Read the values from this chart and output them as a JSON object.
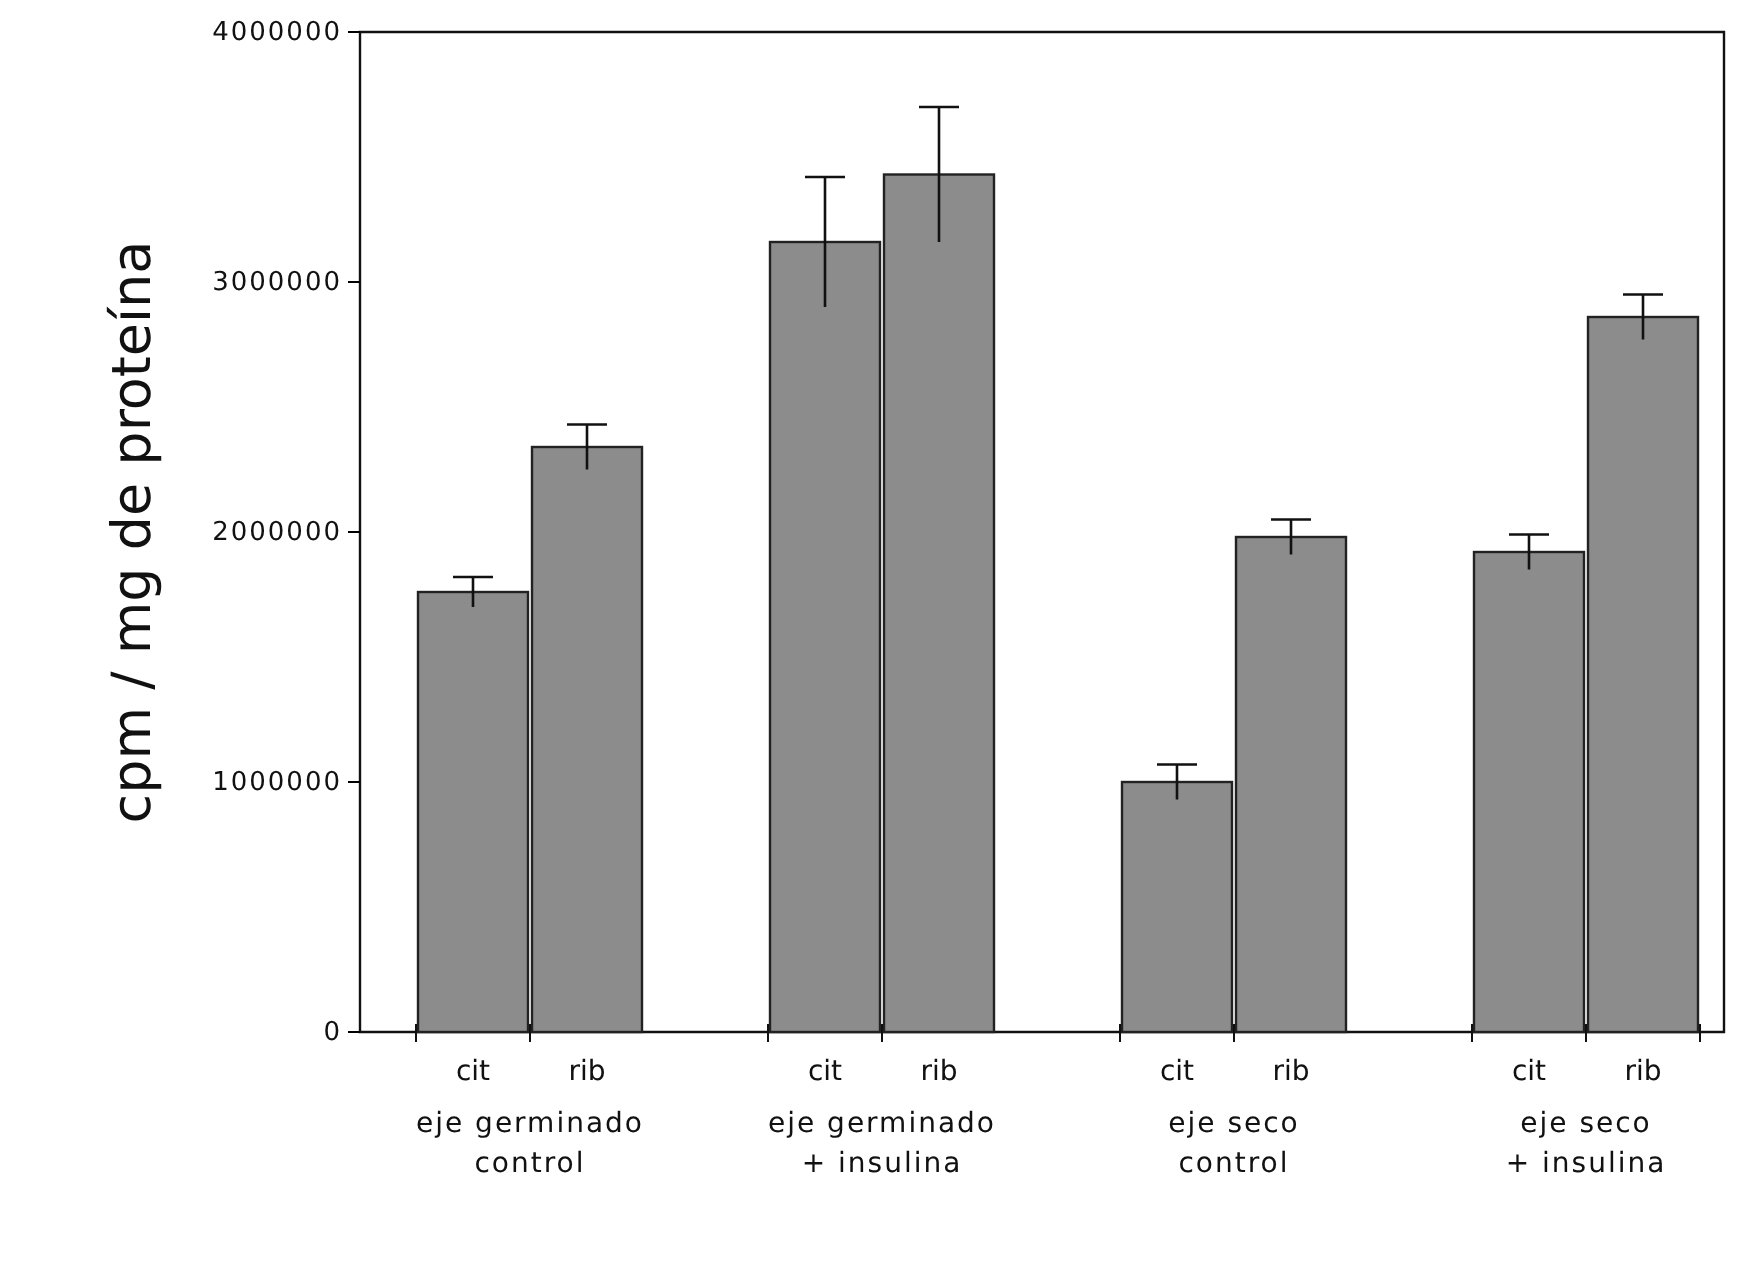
{
  "chart_data": {
    "type": "bar",
    "ylabel": "cpm / mg de proteína",
    "categories": [
      "cit",
      "rib",
      "cit",
      "rib",
      "cit",
      "rib",
      "cit",
      "rib"
    ],
    "values": [
      1760000,
      2340000,
      3160000,
      3430000,
      1000000,
      1980000,
      1920000,
      2860000
    ],
    "errors": [
      60000,
      90000,
      260000,
      270000,
      70000,
      70000,
      70000,
      90000
    ],
    "color": "#8c8c8c",
    "ylim": [
      0,
      4000000
    ],
    "yticks": [
      0,
      1000000,
      2000000,
      3000000,
      4000000
    ],
    "annotations": [
      "eje germinado\ncontrol",
      "eje germinado\n+ insulina",
      "eje seco\ncontrol",
      "eje seco\n+ insulina"
    ],
    "grid": false
  }
}
